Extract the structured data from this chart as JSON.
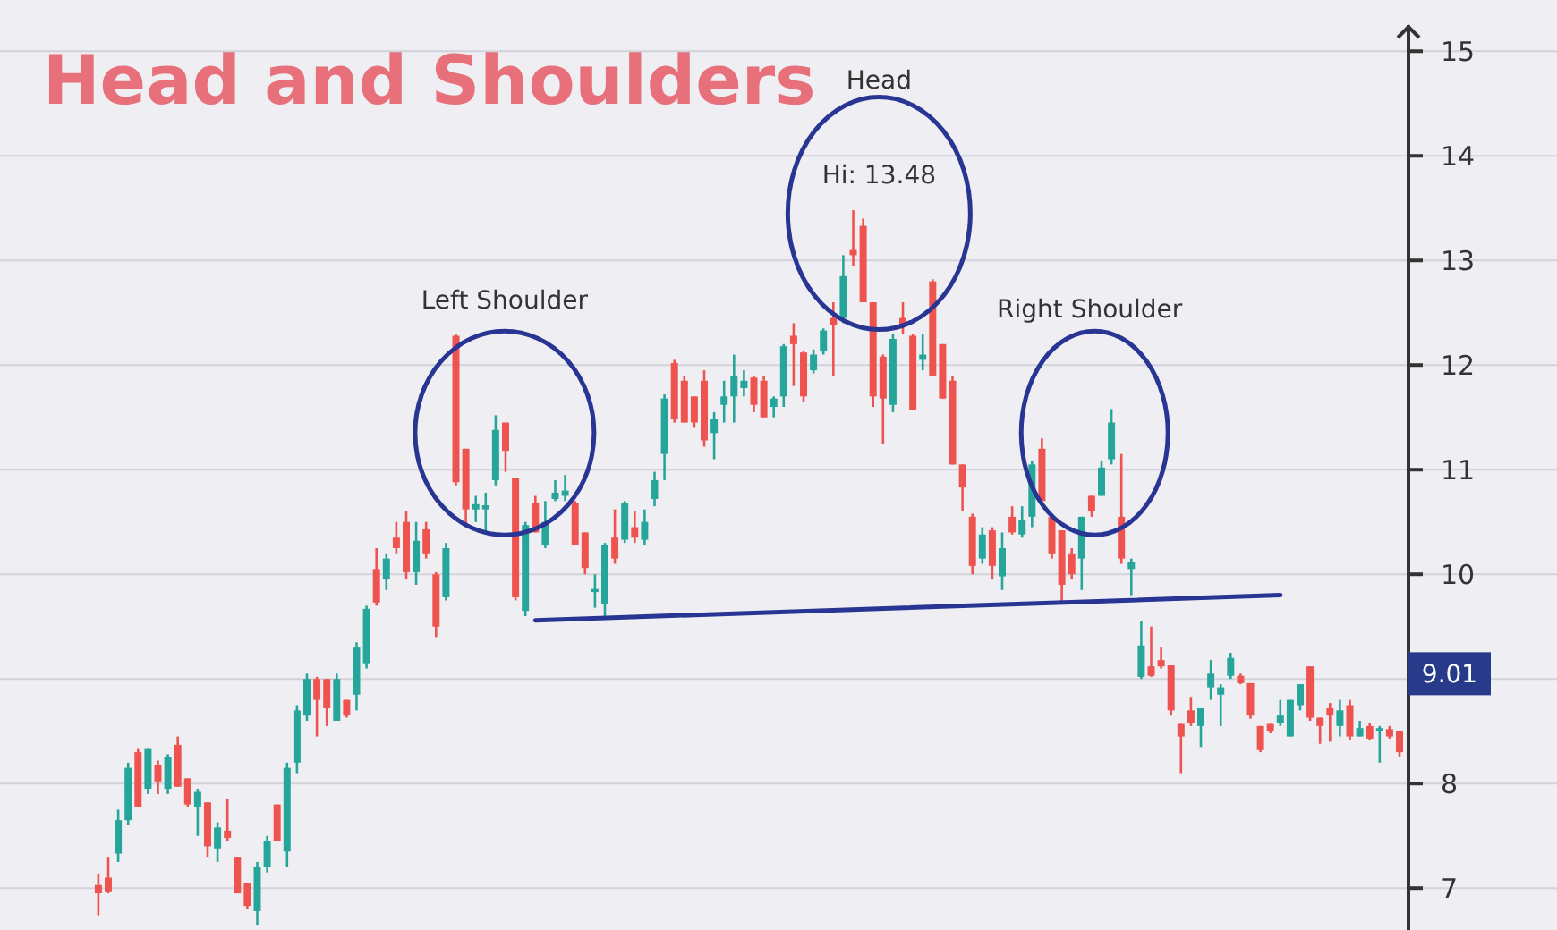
{
  "chart_data": {
    "type": "candlestick",
    "title": "Head and Shoulders",
    "categories": [
      null,
      null,
      null,
      null,
      null,
      null,
      null,
      null,
      null,
      null,
      null,
      null,
      null,
      null,
      null,
      null,
      null,
      null,
      null,
      null,
      null,
      null,
      null,
      null,
      null,
      null,
      null,
      null,
      null,
      null,
      null,
      null,
      null,
      null,
      null,
      null,
      null,
      null,
      null,
      null,
      null,
      null,
      null,
      null,
      null,
      null,
      null,
      null,
      null,
      null,
      null,
      null,
      null,
      null,
      null,
      null,
      null,
      null,
      null,
      null,
      null,
      null,
      null,
      null,
      null,
      null,
      null,
      null,
      null,
      null,
      null,
      null,
      null,
      null,
      null,
      null,
      null,
      null,
      null,
      null,
      null,
      null,
      null,
      null,
      null,
      null,
      null,
      null,
      null,
      null,
      null,
      null,
      null,
      null,
      null,
      null,
      null,
      null,
      null,
      null,
      null,
      null,
      null,
      null,
      null,
      null,
      null,
      null,
      null,
      null,
      null,
      null,
      null,
      null,
      null,
      null,
      null,
      null,
      null,
      null,
      null,
      null,
      null,
      null,
      null,
      null,
      null,
      null,
      null,
      null,
      null,
      null
    ],
    "ohlc": [
      [
        7.03,
        7.14,
        6.74,
        6.95
      ],
      [
        7.1,
        7.3,
        6.95,
        6.97
      ],
      [
        7.33,
        7.75,
        7.25,
        7.65
      ],
      [
        7.65,
        8.2,
        7.6,
        8.15
      ],
      [
        8.3,
        8.33,
        7.78,
        7.78
      ],
      [
        7.95,
        8.33,
        7.9,
        8.33
      ],
      [
        8.18,
        8.22,
        7.9,
        8.02
      ],
      [
        7.95,
        8.28,
        7.9,
        8.25
      ],
      [
        8.37,
        8.45,
        7.97,
        7.97
      ],
      [
        8.05,
        8.05,
        7.78,
        7.8
      ],
      [
        7.78,
        7.95,
        7.5,
        7.92
      ],
      [
        7.82,
        7.82,
        7.3,
        7.4
      ],
      [
        7.38,
        7.63,
        7.25,
        7.58
      ],
      [
        7.55,
        7.85,
        7.45,
        7.48
      ],
      [
        7.3,
        7.3,
        6.95,
        6.95
      ],
      [
        7.05,
        7.05,
        6.8,
        6.83
      ],
      [
        6.78,
        7.25,
        6.65,
        7.2
      ],
      [
        7.2,
        7.5,
        7.15,
        7.45
      ],
      [
        7.8,
        7.8,
        7.45,
        7.45
      ],
      [
        7.35,
        8.2,
        7.2,
        8.15
      ],
      [
        8.2,
        8.75,
        8.1,
        8.7
      ],
      [
        8.65,
        9.05,
        8.6,
        9.0
      ],
      [
        9.0,
        9.02,
        8.45,
        8.8
      ],
      [
        9.0,
        9.0,
        8.55,
        8.72
      ],
      [
        8.6,
        9.05,
        8.6,
        9.0
      ],
      [
        8.8,
        8.8,
        8.63,
        8.65
      ],
      [
        8.85,
        9.35,
        8.7,
        9.3
      ],
      [
        9.15,
        9.7,
        9.1,
        9.67
      ],
      [
        10.05,
        10.25,
        9.7,
        9.73
      ],
      [
        9.95,
        10.2,
        9.85,
        10.15
      ],
      [
        10.35,
        10.5,
        10.2,
        10.25
      ],
      [
        10.5,
        10.6,
        9.95,
        10.02
      ],
      [
        10.02,
        10.5,
        9.9,
        10.32
      ],
      [
        10.43,
        10.5,
        10.15,
        10.2
      ],
      [
        10.0,
        10.02,
        9.4,
        9.5
      ],
      [
        9.78,
        10.3,
        9.75,
        10.25
      ],
      [
        12.28,
        12.3,
        10.85,
        10.88
      ],
      [
        11.2,
        11.2,
        10.45,
        10.62
      ],
      [
        10.62,
        10.75,
        10.5,
        10.67
      ],
      [
        10.62,
        10.78,
        10.4,
        10.66
      ],
      [
        10.9,
        11.52,
        10.85,
        11.38
      ],
      [
        11.45,
        11.45,
        10.98,
        11.18
      ],
      [
        10.92,
        10.92,
        9.75,
        9.78
      ],
      [
        9.65,
        10.5,
        9.6,
        10.47
      ],
      [
        10.68,
        10.75,
        10.4,
        10.4
      ],
      [
        10.28,
        10.7,
        10.25,
        10.5
      ],
      [
        10.72,
        10.9,
        10.7,
        10.78
      ],
      [
        10.75,
        10.95,
        10.7,
        10.8
      ],
      [
        10.68,
        10.7,
        10.28,
        10.28
      ],
      [
        10.4,
        10.4,
        10.0,
        10.06
      ],
      [
        9.83,
        10.0,
        9.68,
        9.86
      ],
      [
        9.72,
        10.3,
        9.6,
        10.28
      ],
      [
        10.35,
        10.62,
        10.1,
        10.15
      ],
      [
        10.33,
        10.7,
        10.3,
        10.68
      ],
      [
        10.45,
        10.6,
        10.3,
        10.35
      ],
      [
        10.33,
        10.62,
        10.28,
        10.5
      ],
      [
        10.72,
        10.98,
        10.65,
        10.9
      ],
      [
        11.15,
        11.72,
        10.9,
        11.68
      ],
      [
        12.02,
        12.05,
        11.45,
        11.48
      ],
      [
        11.85,
        11.9,
        11.45,
        11.45
      ],
      [
        11.7,
        11.7,
        11.4,
        11.45
      ],
      [
        11.85,
        11.95,
        11.22,
        11.28
      ],
      [
        11.35,
        11.55,
        11.1,
        11.48
      ],
      [
        11.62,
        11.85,
        11.45,
        11.7
      ],
      [
        11.7,
        12.1,
        11.45,
        11.9
      ],
      [
        11.78,
        11.95,
        11.7,
        11.85
      ],
      [
        11.88,
        11.9,
        11.55,
        11.62
      ],
      [
        11.85,
        11.9,
        11.5,
        11.5
      ],
      [
        11.6,
        11.7,
        11.5,
        11.68
      ],
      [
        11.7,
        12.2,
        11.6,
        12.18
      ],
      [
        12.28,
        12.4,
        11.8,
        12.2
      ],
      [
        12.12,
        12.13,
        11.65,
        11.7
      ],
      [
        11.95,
        12.15,
        11.92,
        12.1
      ],
      [
        12.13,
        12.35,
        12.1,
        12.33
      ],
      [
        12.45,
        12.6,
        11.9,
        12.38
      ],
      [
        12.45,
        13.05,
        12.4,
        12.85
      ],
      [
        13.1,
        13.48,
        12.95,
        13.05
      ],
      [
        13.33,
        13.4,
        12.6,
        12.6
      ],
      [
        12.6,
        12.6,
        11.6,
        11.7
      ],
      [
        12.08,
        12.1,
        11.25,
        11.68
      ],
      [
        11.62,
        12.3,
        11.55,
        12.25
      ],
      [
        12.45,
        12.6,
        12.3,
        12.37
      ],
      [
        12.28,
        12.3,
        11.57,
        11.57
      ],
      [
        12.05,
        12.3,
        11.95,
        12.1
      ],
      [
        12.8,
        12.82,
        11.9,
        11.9
      ],
      [
        12.2,
        12.2,
        11.68,
        11.68
      ],
      [
        11.85,
        11.9,
        11.05,
        11.05
      ],
      [
        11.05,
        11.05,
        10.6,
        10.83
      ],
      [
        10.55,
        10.58,
        10.0,
        10.08
      ],
      [
        10.15,
        10.45,
        10.1,
        10.38
      ],
      [
        10.42,
        10.45,
        9.95,
        10.08
      ],
      [
        9.98,
        10.4,
        9.85,
        10.25
      ],
      [
        10.55,
        10.65,
        10.38,
        10.4
      ],
      [
        10.38,
        10.65,
        10.35,
        10.52
      ],
      [
        10.55,
        11.08,
        10.45,
        11.05
      ],
      [
        11.2,
        11.3,
        10.7,
        10.7
      ],
      [
        10.55,
        10.55,
        10.15,
        10.2
      ],
      [
        10.42,
        10.42,
        9.72,
        9.9
      ],
      [
        10.2,
        10.25,
        9.95,
        10.0
      ],
      [
        10.15,
        10.55,
        9.85,
        10.55
      ],
      [
        10.75,
        10.75,
        10.55,
        10.6
      ],
      [
        10.75,
        11.08,
        10.75,
        11.02
      ],
      [
        11.1,
        11.58,
        11.05,
        11.45
      ],
      [
        10.55,
        11.15,
        10.1,
        10.15
      ],
      [
        10.05,
        10.15,
        9.8,
        10.12
      ],
      [
        9.02,
        9.55,
        9.0,
        9.32
      ],
      [
        9.12,
        9.5,
        9.02,
        9.03
      ],
      [
        9.18,
        9.3,
        9.1,
        9.12
      ],
      [
        9.13,
        9.13,
        8.65,
        8.7
      ],
      [
        8.57,
        8.57,
        8.1,
        8.45
      ],
      [
        8.7,
        8.82,
        8.55,
        8.58
      ],
      [
        8.55,
        8.72,
        8.35,
        8.72
      ],
      [
        8.92,
        9.18,
        8.8,
        9.05
      ],
      [
        8.85,
        8.95,
        8.55,
        8.92
      ],
      [
        9.03,
        9.25,
        9.0,
        9.2
      ],
      [
        9.03,
        9.05,
        8.95,
        8.96
      ],
      [
        8.96,
        8.96,
        8.62,
        8.65
      ],
      [
        8.55,
        8.55,
        8.3,
        8.32
      ],
      [
        8.57,
        8.57,
        8.48,
        8.5
      ],
      [
        8.58,
        8.8,
        8.55,
        8.65
      ],
      [
        8.45,
        8.8,
        8.45,
        8.8
      ],
      [
        8.75,
        8.95,
        8.7,
        8.95
      ],
      [
        9.12,
        9.12,
        8.6,
        8.63
      ],
      [
        8.63,
        8.63,
        8.38,
        8.55
      ],
      [
        8.72,
        8.77,
        8.4,
        8.65
      ],
      [
        8.55,
        8.8,
        8.45,
        8.7
      ],
      [
        8.75,
        8.8,
        8.42,
        8.45
      ],
      [
        8.45,
        8.6,
        8.45,
        8.53
      ],
      [
        8.55,
        8.58,
        8.42,
        8.43
      ],
      [
        8.5,
        8.55,
        8.2,
        8.53
      ],
      [
        8.52,
        8.55,
        8.43,
        8.45
      ],
      [
        8.5,
        8.5,
        8.25,
        8.3
      ]
    ],
    "colors": [
      "#ef5350",
      "#ef5350",
      "#26a69a",
      "#26a69a",
      "#ef5350",
      "#26a69a",
      "#ef5350",
      "#26a69a",
      "#ef5350",
      "#ef5350",
      "#26a69a",
      "#ef5350",
      "#26a69a",
      "#ef5350",
      "#ef5350",
      "#ef5350",
      "#26a69a",
      "#26a69a",
      "#ef5350",
      "#26a69a",
      "#26a69a",
      "#26a69a",
      "#ef5350",
      "#ef5350",
      "#26a69a",
      "#ef5350",
      "#26a69a",
      "#26a69a",
      "#ef5350",
      "#26a69a",
      "#ef5350",
      "#ef5350",
      "#26a69a",
      "#ef5350",
      "#ef5350",
      "#26a69a",
      "#ef5350",
      "#ef5350",
      "#26a69a",
      "#26a69a",
      "#26a69a",
      "#ef5350",
      "#ef5350",
      "#26a69a",
      "#ef5350",
      "#26a69a",
      "#26a69a",
      "#26a69a",
      "#ef5350",
      "#ef5350",
      "#26a69a",
      "#26a69a",
      "#ef5350",
      "#26a69a",
      "#ef5350",
      "#26a69a",
      "#26a69a",
      "#26a69a",
      "#ef5350",
      "#ef5350",
      "#ef5350",
      "#ef5350",
      "#26a69a",
      "#26a69a",
      "#26a69a",
      "#26a69a",
      "#ef5350",
      "#ef5350",
      "#26a69a",
      "#26a69a",
      "#ef5350",
      "#ef5350",
      "#26a69a",
      "#26a69a",
      "#ef5350",
      "#26a69a",
      "#ef5350",
      "#ef5350",
      "#ef5350",
      "#ef5350",
      "#26a69a",
      "#ef5350",
      "#ef5350",
      "#26a69a",
      "#ef5350",
      "#ef5350",
      "#ef5350",
      "#ef5350",
      "#ef5350",
      "#26a69a",
      "#ef5350",
      "#26a69a",
      "#ef5350",
      "#26a69a",
      "#26a69a",
      "#ef5350",
      "#ef5350",
      "#ef5350",
      "#ef5350",
      "#26a69a",
      "#ef5350",
      "#26a69a",
      "#26a69a",
      "#ef5350",
      "#26a69a",
      "#26a69a",
      "#ef5350",
      "#ef5350",
      "#ef5350",
      "#ef5350",
      "#ef5350",
      "#26a69a",
      "#26a69a",
      "#26a69a",
      "#26a69a",
      "#ef5350",
      "#ef5350",
      "#ef5350",
      "#ef5350",
      "#26a69a",
      "#26a69a",
      "#26a69a",
      "#ef5350",
      "#ef5350",
      "#ef5350",
      "#26a69a",
      "#ef5350",
      "#26a69a",
      "#ef5350",
      "#26a69a",
      "#ef5350",
      "#ef5350"
    ],
    "series": [
      {
        "type": "line",
        "color": "#283593",
        "values": [
          null,
          null,
          null,
          null,
          null,
          null,
          null,
          null,
          null,
          null,
          null,
          null,
          null,
          null,
          null,
          null,
          null,
          null,
          null,
          null,
          null,
          null,
          null,
          null,
          null,
          null,
          null,
          null,
          null,
          null,
          null,
          null,
          null,
          null,
          null,
          null,
          null,
          null,
          null,
          null,
          null,
          null,
          null,
          null,
          9.56,
          null,
          null,
          null,
          null,
          null,
          null,
          null,
          null,
          null,
          null,
          null,
          null,
          null,
          null,
          null,
          null,
          null,
          null,
          null,
          null,
          null,
          null,
          null,
          null,
          null,
          null,
          null,
          null,
          null,
          null,
          null,
          null,
          null,
          null,
          null,
          null,
          null,
          null,
          null,
          null,
          null,
          null,
          null,
          null,
          null,
          null,
          null,
          null,
          null,
          null,
          null,
          null,
          null,
          null,
          null,
          null,
          null,
          null,
          null,
          null,
          null,
          null,
          null,
          null,
          null,
          null,
          null,
          null,
          null,
          null,
          null,
          null,
          null,
          null,
          9.8,
          null,
          null,
          null,
          null,
          null,
          null,
          null,
          null,
          null,
          null,
          null,
          null
        ]
      }
    ],
    "ylim": [
      6.6,
      15.25
    ],
    "yticks": [
      7,
      8,
      {
        "value": 9,
        "label": null
      },
      10,
      11,
      12,
      13,
      14,
      15
    ],
    "tick_labels": "y",
    "grid": "y",
    "annotations": [
      "Left Shoulder",
      "Head",
      "Hi: 13.48",
      "Right Shoulder",
      "9.01"
    ]
  }
}
